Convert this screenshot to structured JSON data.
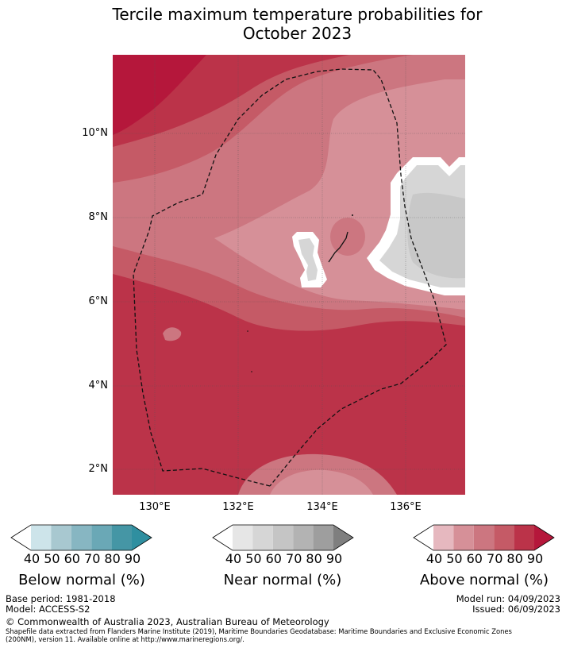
{
  "title": {
    "line1": "Tercile maximum temperature probabilities for",
    "line2": "October 2023"
  },
  "axes": {
    "lat_labels": [
      "10°N",
      "8°N",
      "6°N",
      "4°N",
      "2°N"
    ],
    "lon_labels": [
      "130°E",
      "132°E",
      "134°E",
      "136°E"
    ]
  },
  "colorbars": [
    {
      "name": "Below normal (%)",
      "ticks": [
        "40",
        "50",
        "60",
        "70",
        "80",
        "90"
      ],
      "colors": [
        "#ffffff",
        "#cde4ea",
        "#a8c8d0",
        "#87b6c2",
        "#6aa8b6",
        "#4596a5",
        "#2f8fa0"
      ]
    },
    {
      "name": "Near normal (%)",
      "ticks": [
        "40",
        "50",
        "60",
        "70",
        "80",
        "90"
      ],
      "colors": [
        "#ffffff",
        "#e6e6e6",
        "#d6d6d6",
        "#c5c5c5",
        "#b3b3b3",
        "#9e9e9e",
        "#7f7f7f"
      ]
    },
    {
      "name": "Above normal (%)",
      "ticks": [
        "40",
        "50",
        "60",
        "70",
        "80",
        "90"
      ],
      "colors": [
        "#ffffff",
        "#e6b8bf",
        "#d69098",
        "#cc7680",
        "#c55a66",
        "#bb3349",
        "#b5173b"
      ]
    }
  ],
  "footer": {
    "base_period": "Base period: 1981-2018",
    "model": "Model: ACCESS-S2",
    "model_run": "Model run: 04/09/2023",
    "issued": "Issued: 06/09/2023",
    "copyright": "© Commonwealth of Australia 2023, Australian Bureau of Meteorology",
    "shapefile_line1": "Shapefile data extracted from Flanders Marine Institute (2019), Maritime Boundaries Geodatabase: Maritime Boundaries and Exclusive Economic Zones",
    "shapefile_line2": "(200NM), version 11. Available online at http://www.marineregions.org/."
  }
}
